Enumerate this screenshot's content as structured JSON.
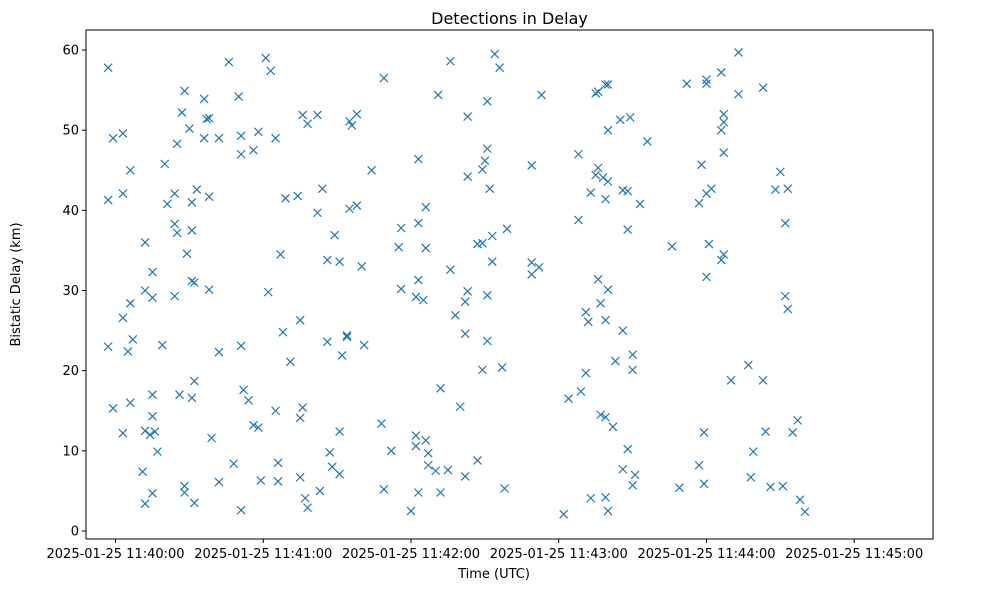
{
  "chart_data": {
    "type": "scatter",
    "title": "Detections in Delay",
    "xlabel": "Time (UTC)",
    "ylabel": "Bistatic Delay (km)",
    "x_unit": "seconds after 2025-01-25 11:40:00",
    "xlim": [
      -12,
      332
    ],
    "ylim": [
      -1,
      62.5
    ],
    "x_ticks": [
      {
        "value": 0,
        "label": "2025-01-25 11:40:00"
      },
      {
        "value": 60,
        "label": "2025-01-25 11:41:00"
      },
      {
        "value": 120,
        "label": "2025-01-25 11:42:00"
      },
      {
        "value": 180,
        "label": "2025-01-25 11:43:00"
      },
      {
        "value": 240,
        "label": "2025-01-25 11:44:00"
      },
      {
        "value": 300,
        "label": "2025-01-25 11:45:00"
      }
    ],
    "y_ticks": [
      {
        "value": 0,
        "label": "0"
      },
      {
        "value": 10,
        "label": "10"
      },
      {
        "value": 20,
        "label": "20"
      },
      {
        "value": 30,
        "label": "30"
      },
      {
        "value": 40,
        "label": "40"
      },
      {
        "value": 50,
        "label": "50"
      },
      {
        "value": 60,
        "label": "60"
      }
    ],
    "marker": "x",
    "color": "#1f77b4",
    "points": [
      [
        -3,
        57.8
      ],
      [
        -3,
        41.3
      ],
      [
        -3,
        23.0
      ],
      [
        -1,
        49.0
      ],
      [
        -1,
        15.3
      ],
      [
        3,
        49.6
      ],
      [
        3,
        42.1
      ],
      [
        3,
        26.6
      ],
      [
        3,
        12.2
      ],
      [
        5,
        22.4
      ],
      [
        6,
        45.0
      ],
      [
        6,
        28.4
      ],
      [
        6,
        16.0
      ],
      [
        7,
        23.9
      ],
      [
        12,
        36.0
      ],
      [
        12,
        30.0
      ],
      [
        12,
        12.5
      ],
      [
        11,
        7.4
      ],
      [
        12,
        3.4
      ],
      [
        14,
        12.0
      ],
      [
        15,
        32.3
      ],
      [
        15,
        29.1
      ],
      [
        15,
        17.0
      ],
      [
        15,
        14.3
      ],
      [
        15,
        4.7
      ],
      [
        16,
        12.4
      ],
      [
        17,
        9.9
      ],
      [
        19,
        23.2
      ],
      [
        20,
        45.8
      ],
      [
        21,
        40.8
      ],
      [
        24,
        42.1
      ],
      [
        24,
        38.3
      ],
      [
        25,
        48.3
      ],
      [
        25,
        37.2
      ],
      [
        24,
        29.3
      ],
      [
        26,
        17.0
      ],
      [
        27,
        52.2
      ],
      [
        28,
        54.9
      ],
      [
        29,
        34.6
      ],
      [
        28,
        5.6
      ],
      [
        28,
        4.8
      ],
      [
        30,
        50.2
      ],
      [
        31,
        41.0
      ],
      [
        31,
        37.5
      ],
      [
        31,
        31.2
      ],
      [
        31,
        16.6
      ],
      [
        32,
        31.0
      ],
      [
        32,
        18.7
      ],
      [
        32,
        3.5
      ],
      [
        33,
        42.6
      ],
      [
        36,
        53.9
      ],
      [
        36,
        49.0
      ],
      [
        37,
        51.4
      ],
      [
        38,
        51.5
      ],
      [
        38,
        41.7
      ],
      [
        38,
        30.1
      ],
      [
        39,
        11.6
      ],
      [
        42,
        49.0
      ],
      [
        42,
        22.3
      ],
      [
        42,
        6.1
      ],
      [
        46,
        58.5
      ],
      [
        48,
        8.4
      ],
      [
        50,
        54.2
      ],
      [
        51,
        49.3
      ],
      [
        51,
        47.0
      ],
      [
        51,
        23.1
      ],
      [
        51,
        2.6
      ],
      [
        52,
        17.6
      ],
      [
        54,
        16.3
      ],
      [
        56,
        47.5
      ],
      [
        56,
        13.2
      ],
      [
        58,
        49.8
      ],
      [
        58,
        12.9
      ],
      [
        59,
        6.3
      ],
      [
        61,
        59.0
      ],
      [
        62,
        29.8
      ],
      [
        63,
        57.4
      ],
      [
        65,
        49.0
      ],
      [
        65,
        15.0
      ],
      [
        66,
        8.5
      ],
      [
        66,
        6.2
      ],
      [
        67,
        34.5
      ],
      [
        68,
        24.8
      ],
      [
        69,
        41.5
      ],
      [
        71,
        21.1
      ],
      [
        74,
        41.8
      ],
      [
        75,
        14.1
      ],
      [
        75,
        26.3
      ],
      [
        76,
        15.4
      ],
      [
        75,
        6.7
      ],
      [
        76,
        51.9
      ],
      [
        77,
        4.1
      ],
      [
        78,
        50.8
      ],
      [
        78,
        2.9
      ],
      [
        82,
        51.9
      ],
      [
        82,
        39.7
      ],
      [
        83,
        5.0
      ],
      [
        84,
        42.7
      ],
      [
        86,
        33.8
      ],
      [
        86,
        23.6
      ],
      [
        87,
        9.8
      ],
      [
        88,
        8.0
      ],
      [
        89,
        36.9
      ],
      [
        91,
        33.6
      ],
      [
        91,
        12.4
      ],
      [
        91,
        7.1
      ],
      [
        92,
        21.9
      ],
      [
        94,
        24.2
      ],
      [
        94,
        24.4
      ],
      [
        95,
        51.1
      ],
      [
        95,
        40.2
      ],
      [
        96,
        50.6
      ],
      [
        98,
        52.0
      ],
      [
        98,
        40.6
      ],
      [
        100,
        33.0
      ],
      [
        101,
        23.2
      ],
      [
        104,
        45.0
      ],
      [
        108,
        13.4
      ],
      [
        109,
        56.5
      ],
      [
        109,
        5.2
      ],
      [
        112,
        10.0
      ],
      [
        115,
        35.4
      ],
      [
        116,
        37.8
      ],
      [
        116,
        30.2
      ],
      [
        120,
        2.5
      ],
      [
        122,
        11.9
      ],
      [
        122,
        10.6
      ],
      [
        123,
        46.4
      ],
      [
        123,
        38.4
      ],
      [
        123,
        31.3
      ],
      [
        122,
        29.2
      ],
      [
        123,
        4.8
      ],
      [
        125,
        28.8
      ],
      [
        126,
        40.4
      ],
      [
        126,
        35.3
      ],
      [
        126,
        11.3
      ],
      [
        127,
        8.2
      ],
      [
        127,
        9.7
      ],
      [
        130,
        7.5
      ],
      [
        131,
        54.4
      ],
      [
        132,
        17.8
      ],
      [
        132,
        4.8
      ],
      [
        135,
        7.6
      ],
      [
        136,
        58.6
      ],
      [
        136,
        32.6
      ],
      [
        138,
        26.9
      ],
      [
        140,
        15.5
      ],
      [
        142,
        28.6
      ],
      [
        142,
        24.6
      ],
      [
        142,
        6.8
      ],
      [
        143,
        51.7
      ],
      [
        143,
        44.2
      ],
      [
        143,
        29.9
      ],
      [
        147,
        35.8
      ],
      [
        147,
        8.8
      ],
      [
        149,
        45.1
      ],
      [
        149,
        35.9
      ],
      [
        150,
        46.2
      ],
      [
        151,
        53.6
      ],
      [
        151,
        47.7
      ],
      [
        151,
        29.4
      ],
      [
        151,
        23.7
      ],
      [
        149,
        20.1
      ],
      [
        152,
        42.7
      ],
      [
        153,
        36.8
      ],
      [
        153,
        33.6
      ],
      [
        154,
        59.5
      ],
      [
        156,
        57.8
      ],
      [
        157,
        20.4
      ],
      [
        158,
        5.3
      ],
      [
        159,
        37.7
      ],
      [
        169,
        45.6
      ],
      [
        169,
        33.5
      ],
      [
        169,
        32.0
      ],
      [
        172,
        32.9
      ],
      [
        173,
        54.4
      ],
      [
        182,
        2.1
      ],
      [
        184,
        16.5
      ],
      [
        188,
        47.0
      ],
      [
        188,
        38.8
      ],
      [
        189,
        17.4
      ],
      [
        191,
        19.7
      ],
      [
        191,
        27.3
      ],
      [
        192,
        26.1
      ],
      [
        193,
        42.2
      ],
      [
        193,
        4.1
      ],
      [
        195,
        54.6
      ],
      [
        195,
        44.4
      ],
      [
        196,
        54.8
      ],
      [
        196,
        45.3
      ],
      [
        196,
        31.4
      ],
      [
        197,
        14.5
      ],
      [
        197,
        28.4
      ],
      [
        198,
        44.1
      ],
      [
        199,
        55.7
      ],
      [
        199,
        41.4
      ],
      [
        199,
        26.3
      ],
      [
        199,
        14.2
      ],
      [
        199,
        4.2
      ],
      [
        200,
        55.7
      ],
      [
        200,
        50.0
      ],
      [
        200,
        30.1
      ],
      [
        200,
        43.6
      ],
      [
        200,
        2.5
      ],
      [
        202,
        13.0
      ],
      [
        203,
        21.2
      ],
      [
        205,
        51.3
      ],
      [
        206,
        25.0
      ],
      [
        206,
        7.7
      ],
      [
        206,
        42.5
      ],
      [
        208,
        42.4
      ],
      [
        208,
        37.6
      ],
      [
        208,
        10.2
      ],
      [
        209,
        51.6
      ],
      [
        210,
        22.0
      ],
      [
        210,
        20.1
      ],
      [
        210,
        5.7
      ],
      [
        211,
        7.0
      ],
      [
        213,
        40.8
      ],
      [
        216,
        48.6
      ],
      [
        226,
        35.5
      ],
      [
        229,
        5.4
      ],
      [
        232,
        55.8
      ],
      [
        237,
        40.9
      ],
      [
        237,
        8.2
      ],
      [
        238,
        45.7
      ],
      [
        239,
        12.3
      ],
      [
        239,
        5.9
      ],
      [
        240,
        56.3
      ],
      [
        240,
        55.8
      ],
      [
        240,
        42.1
      ],
      [
        240,
        31.7
      ],
      [
        241,
        35.8
      ],
      [
        242,
        42.7
      ],
      [
        246,
        57.2
      ],
      [
        246,
        33.8
      ],
      [
        246,
        50.0
      ],
      [
        247,
        52.0
      ],
      [
        247,
        51.0
      ],
      [
        247,
        47.2
      ],
      [
        247,
        34.5
      ],
      [
        250,
        18.8
      ],
      [
        253,
        59.7
      ],
      [
        253,
        54.5
      ],
      [
        257,
        20.7
      ],
      [
        258,
        6.7
      ],
      [
        259,
        9.9
      ],
      [
        263,
        55.3
      ],
      [
        263,
        18.8
      ],
      [
        264,
        12.4
      ],
      [
        266,
        5.5
      ],
      [
        268,
        42.6
      ],
      [
        270,
        44.8
      ],
      [
        272,
        38.4
      ],
      [
        272,
        29.3
      ],
      [
        271,
        5.6
      ],
      [
        273,
        27.7
      ],
      [
        273,
        42.7
      ],
      [
        275,
        12.3
      ],
      [
        277,
        13.8
      ],
      [
        278,
        3.9
      ],
      [
        280,
        2.4
      ]
    ]
  }
}
